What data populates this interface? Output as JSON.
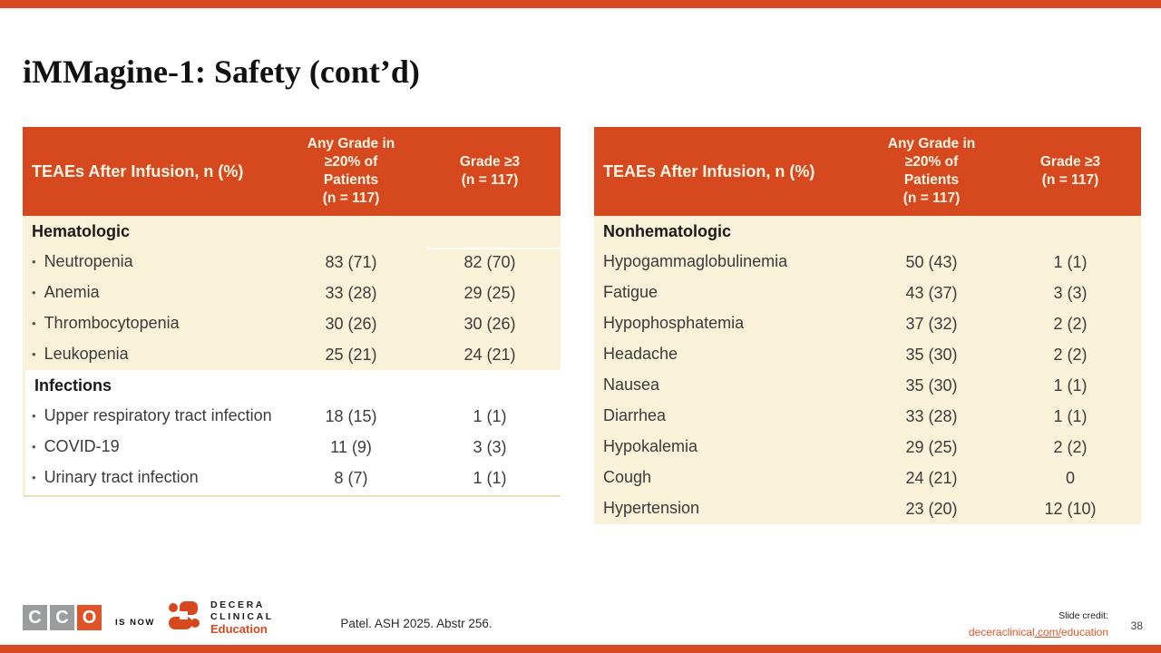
{
  "slide": {
    "title": "iMMagine-1: Safety (cont’d)",
    "reference": "Patel. ASH 2025. Abstr 256.",
    "page_number": "38",
    "credit": {
      "label": "Slide credit:",
      "link_pre": "deceraclinical",
      "link_mid": ".com/",
      "link_post": "education"
    }
  },
  "branding": {
    "cco_letters": [
      "C",
      "C",
      "O"
    ],
    "is_now_label": "IS NOW",
    "decera_name_line1": "DECERA",
    "decera_name_line2": "CLINICAL",
    "decera_tagline": "Education",
    "decera_mark_icon": "decera-square-mark",
    "bullet_glyph": "•",
    "accent_color": "#D6491F",
    "cream_color": "#F9F1D8",
    "link_color": "#E2552A"
  },
  "left_table": {
    "headers": {
      "col1": "TEAEs After Infusion, n (%)",
      "col2": "Any Grade in\n≥20% of\nPatients\n(n = 117)",
      "col3": "Grade ≥3\n(n = 117)"
    },
    "sections": [
      {
        "name": "Hematologic",
        "bullets": true,
        "rows": [
          [
            "Neutropenia",
            "83 (71)",
            "82 (70)"
          ],
          [
            "Anemia",
            "33 (28)",
            "29 (25)"
          ],
          [
            "Thrombocytopenia",
            "30 (26)",
            "30 (26)"
          ],
          [
            "Leukopenia",
            "25 (21)",
            "24 (21)"
          ]
        ]
      },
      {
        "name": "Infections",
        "bullets": true,
        "rows": [
          [
            "Upper respiratory tract infection",
            "18 (15)",
            "1 (1)"
          ],
          [
            "COVID-19",
            "11 (9)",
            "3 (3)"
          ],
          [
            "Urinary tract infection",
            "8 (7)",
            "1 (1)"
          ]
        ]
      }
    ]
  },
  "right_table": {
    "headers": {
      "col1": "TEAEs After Infusion, n (%)",
      "col2": "Any Grade in\n≥20% of\nPatients\n(n = 117)",
      "col3": "Grade ≥3\n(n = 117)"
    },
    "sections": [
      {
        "name": "Nonhematologic",
        "bullets": false,
        "rows": [
          [
            "Hypogammaglobulinemia",
            "50 (43)",
            "1 (1)"
          ],
          [
            "Fatigue",
            "43 (37)",
            "3 (3)"
          ],
          [
            "Hypophosphatemia",
            "37 (32)",
            "2 (2)"
          ],
          [
            "Headache",
            "35 (30)",
            "2 (2)"
          ],
          [
            "Nausea",
            "35 (30)",
            "1 (1)"
          ],
          [
            "Diarrhea",
            "33 (28)",
            "1 (1)"
          ],
          [
            "Hypokalemia",
            "29 (25)",
            "2 (2)"
          ],
          [
            "Cough",
            "24 (21)",
            "0"
          ],
          [
            "Hypertension",
            "23 (20)",
            "12 (10)"
          ]
        ]
      }
    ]
  }
}
